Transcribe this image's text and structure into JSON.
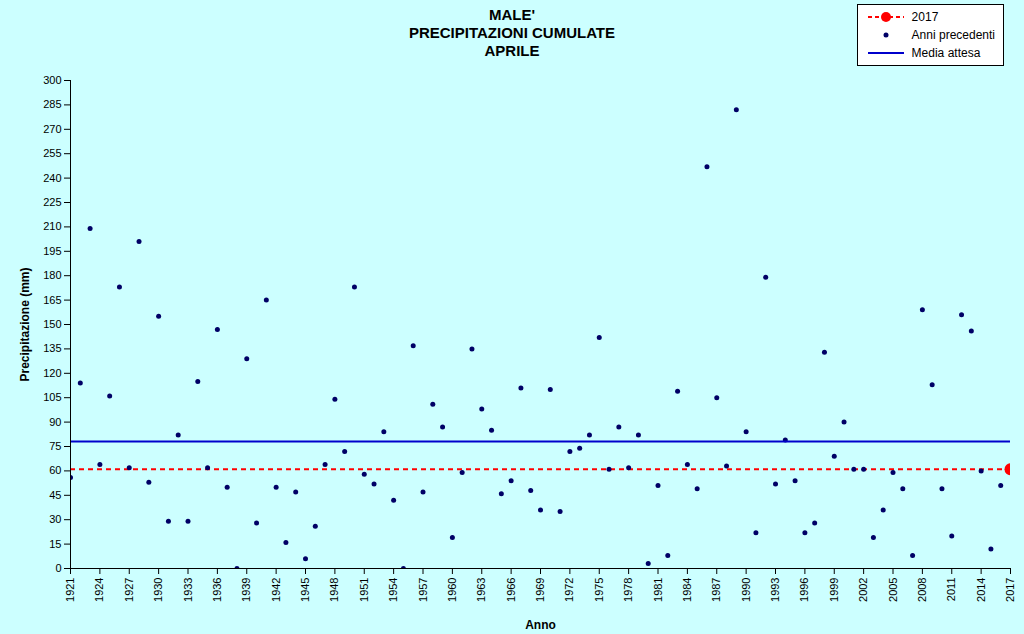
{
  "chart_data": {
    "type": "scatter",
    "title": "MALE'\nPRECIPITAZIONI CUMULATE\nAPRILE",
    "x_label": "Anno",
    "y_label": "Precipitazione (mm)",
    "xlim": [
      1921,
      2017
    ],
    "xticks": [
      1921,
      1924,
      1927,
      1930,
      1933,
      1936,
      1939,
      1942,
      1945,
      1948,
      1951,
      1954,
      1957,
      1960,
      1963,
      1966,
      1969,
      1972,
      1975,
      1978,
      1981,
      1984,
      1987,
      1990,
      1993,
      1996,
      1999,
      2002,
      2005,
      2008,
      2011,
      2014,
      2017
    ],
    "ylim": [
      0,
      300
    ],
    "yticks": [
      0,
      15,
      30,
      45,
      60,
      75,
      90,
      105,
      120,
      135,
      150,
      165,
      180,
      195,
      210,
      225,
      240,
      255,
      270,
      285,
      300
    ],
    "grid": false,
    "legend": "top-right",
    "series": [
      {
        "name": "2017",
        "color": "#ff0000",
        "marker": "circle",
        "line_style": "dashed",
        "x": [
          2017
        ],
        "values": [
          61
        ]
      },
      {
        "name": "Anni precedenti",
        "color": "#000066",
        "marker": "dot",
        "x": [
          1921,
          1922,
          1923,
          1924,
          1925,
          1926,
          1927,
          1928,
          1929,
          1930,
          1931,
          1932,
          1933,
          1934,
          1935,
          1936,
          1937,
          1938,
          1939,
          1940,
          1941,
          1942,
          1943,
          1944,
          1945,
          1946,
          1947,
          1948,
          1949,
          1950,
          1951,
          1952,
          1953,
          1954,
          1955,
          1956,
          1957,
          1958,
          1959,
          1960,
          1961,
          1962,
          1963,
          1964,
          1965,
          1966,
          1967,
          1968,
          1969,
          1970,
          1971,
          1972,
          1973,
          1974,
          1975,
          1976,
          1977,
          1978,
          1979,
          1980,
          1981,
          1982,
          1983,
          1984,
          1985,
          1986,
          1987,
          1988,
          1989,
          1990,
          1991,
          1992,
          1993,
          1994,
          1995,
          1996,
          1997,
          1998,
          1999,
          2000,
          2001,
          2002,
          2003,
          2004,
          2005,
          2006,
          2007,
          2008,
          2009,
          2010,
          2011,
          2012,
          2013,
          2014,
          2015,
          2016
        ],
        "values": [
          56,
          114,
          209,
          64,
          106,
          173,
          62,
          201,
          53,
          155,
          29,
          82,
          29,
          115,
          62,
          147,
          50,
          0,
          129,
          28,
          165,
          50,
          16,
          47,
          6,
          26,
          64,
          104,
          72,
          173,
          58,
          52,
          84,
          42,
          0,
          137,
          47,
          101,
          87,
          19,
          59,
          135,
          98,
          85,
          46,
          54,
          111,
          48,
          36,
          110,
          35,
          72,
          74,
          82,
          142,
          61,
          87,
          62,
          82,
          3,
          51,
          8,
          109,
          64,
          49,
          247,
          105,
          63,
          282,
          84,
          22,
          179,
          52,
          79,
          54,
          22,
          28,
          133,
          69,
          90,
          61,
          61,
          19,
          36,
          59,
          49,
          8,
          159,
          113,
          49,
          20,
          156,
          146,
          60,
          12,
          51
        ]
      },
      {
        "name": "Media attesa",
        "type": "line",
        "color": "#0000cc",
        "line_style": "solid",
        "x": [
          1921,
          2017
        ],
        "values": [
          78,
          78
        ]
      }
    ]
  }
}
